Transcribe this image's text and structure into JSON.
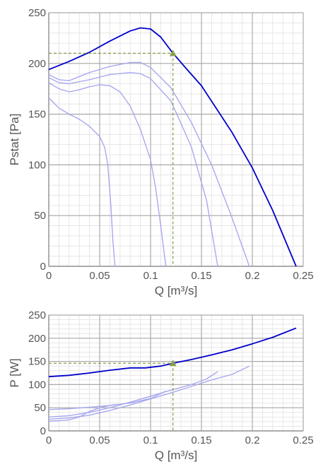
{
  "chart_data": [
    {
      "type": "line",
      "title": "",
      "xlabel": "Q [m³/s]",
      "ylabel": "Pstat [Pa]",
      "xlim": [
        0,
        0.25
      ],
      "ylim": [
        0,
        250
      ],
      "xticks": [
        0,
        0.05,
        0.1,
        0.15,
        0.2,
        0.25
      ],
      "xtick_labels": [
        "0",
        "0.05",
        "0.1",
        "0.15",
        "0.2",
        "0.25"
      ],
      "yticks": [
        0,
        50,
        100,
        150,
        200,
        250
      ],
      "ytick_labels": [
        "0",
        "50",
        "100",
        "150",
        "200",
        "250"
      ],
      "grid": true,
      "colors": {
        "main": "#0000cc",
        "secondary": "#a8a8f0",
        "operating": "#8aa04e",
        "major_grid": "#aaaaaa",
        "minor_grid": "#e6e6e6"
      },
      "series": [
        {
          "emphasis": "main",
          "x": [
            0,
            0.02,
            0.04,
            0.06,
            0.08,
            0.09,
            0.1,
            0.11,
            0.122,
            0.135,
            0.15,
            0.165,
            0.18,
            0.2,
            0.22,
            0.243
          ],
          "y": [
            194,
            202,
            211,
            222,
            232,
            235,
            234,
            226,
            210,
            195,
            178,
            155,
            132,
            97,
            55,
            0
          ]
        },
        {
          "emphasis": "secondary",
          "x": [
            0,
            0.01,
            0.02,
            0.04,
            0.06,
            0.08,
            0.09,
            0.1,
            0.12,
            0.14,
            0.16,
            0.18,
            0.197
          ],
          "y": [
            189,
            184,
            183,
            191,
            197,
            201,
            201,
            196,
            176,
            142,
            100,
            48,
            0
          ]
        },
        {
          "emphasis": "secondary",
          "x": [
            0,
            0.01,
            0.02,
            0.04,
            0.06,
            0.08,
            0.09,
            0.1,
            0.12,
            0.14,
            0.155,
            0.166
          ],
          "y": [
            186,
            181,
            180,
            184,
            189,
            191,
            190,
            185,
            163,
            118,
            65,
            0
          ]
        },
        {
          "emphasis": "secondary",
          "x": [
            0,
            0.01,
            0.02,
            0.03,
            0.04,
            0.05,
            0.06,
            0.07,
            0.08,
            0.09,
            0.1,
            0.105,
            0.11,
            0.115
          ],
          "y": [
            181,
            175,
            172,
            174,
            177,
            179,
            178,
            172,
            158,
            135,
            105,
            77,
            40,
            0
          ]
        },
        {
          "emphasis": "secondary",
          "x": [
            0,
            0.01,
            0.02,
            0.03,
            0.04,
            0.05,
            0.055,
            0.058,
            0.061,
            0.063,
            0.065
          ],
          "y": [
            166,
            156,
            150,
            145,
            138,
            128,
            117,
            100,
            60,
            25,
            0
          ]
        }
      ],
      "operating_point": {
        "x": 0.122,
        "y": 210,
        "marker": "triangle"
      }
    },
    {
      "type": "line",
      "title": "",
      "xlabel": "Q [m³/s]",
      "ylabel": "P [W]",
      "xlim": [
        0,
        0.25
      ],
      "ylim": [
        0,
        250
      ],
      "xticks": [
        0,
        0.05,
        0.1,
        0.15,
        0.2,
        0.25
      ],
      "xtick_labels": [
        "0",
        "0.05",
        "0.1",
        "0.15",
        "0.2",
        "0.25"
      ],
      "yticks": [
        0,
        50,
        100,
        150,
        200,
        250
      ],
      "ytick_labels": [
        "0",
        "50",
        "100",
        "150",
        "200",
        "250"
      ],
      "grid": true,
      "colors": {
        "main": "#0000cc",
        "secondary": "#a8a8f0",
        "operating": "#8aa04e",
        "major_grid": "#aaaaaa",
        "minor_grid": "#e6e6e6"
      },
      "series": [
        {
          "emphasis": "main",
          "x": [
            0,
            0.02,
            0.04,
            0.06,
            0.08,
            0.095,
            0.11,
            0.122,
            0.14,
            0.16,
            0.18,
            0.2,
            0.22,
            0.243
          ],
          "y": [
            117,
            120,
            125,
            131,
            136,
            136,
            140,
            146,
            154,
            164,
            175,
            188,
            202,
            222
          ]
        },
        {
          "emphasis": "secondary",
          "x": [
            0,
            0.02,
            0.04,
            0.06,
            0.08,
            0.1,
            0.12,
            0.14,
            0.16,
            0.18,
            0.197
          ],
          "y": [
            25,
            28,
            34,
            44,
            56,
            69,
            82,
            96,
            110,
            122,
            140
          ]
        },
        {
          "emphasis": "secondary",
          "x": [
            0,
            0.02,
            0.04,
            0.06,
            0.08,
            0.1,
            0.12,
            0.14,
            0.155,
            0.166
          ],
          "y": [
            30,
            33,
            40,
            50,
            62,
            75,
            88,
            100,
            112,
            128
          ]
        },
        {
          "emphasis": "secondary",
          "x": [
            0,
            0.02,
            0.04,
            0.06,
            0.08,
            0.1,
            0.115
          ],
          "y": [
            46,
            48,
            51,
            55,
            60,
            70,
            86
          ]
        },
        {
          "emphasis": "secondary",
          "x": [
            0,
            0.01,
            0.02,
            0.03,
            0.04,
            0.05,
            0.065
          ],
          "y": [
            21,
            22,
            24,
            30,
            42,
            50,
            57
          ]
        }
      ],
      "operating_point": {
        "x": 0.122,
        "y": 146,
        "marker": "triangle"
      }
    }
  ]
}
